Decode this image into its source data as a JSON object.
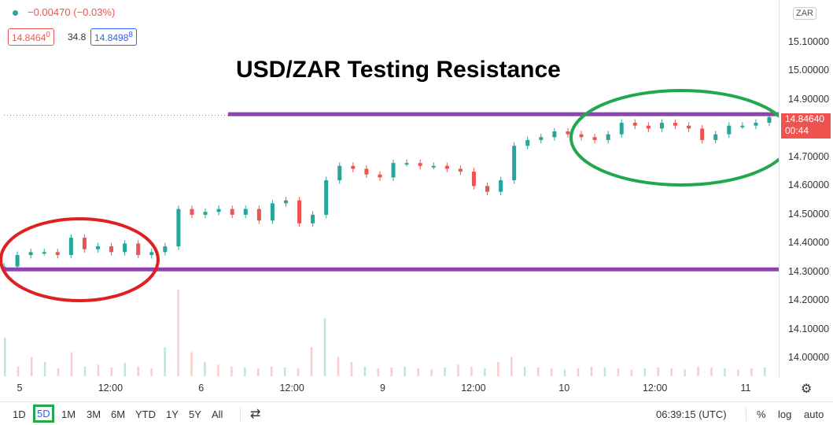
{
  "legend": {
    "change": "−0.00470 (−0.03%)",
    "bid": "14.8464",
    "bid_sup": "0",
    "spread": "34.8",
    "ask": "14.8498",
    "ask_sup": "8"
  },
  "title": "USD/ZAR Testing Resistance",
  "currency": "ZAR",
  "price_tag": {
    "price": "14.84640",
    "countdown": "00:44"
  },
  "colors": {
    "up": "#26a69a",
    "down": "#ef5350",
    "resistance_line": "#8e44ad",
    "support_line": "#8e44ad",
    "start_ellipse": "#e02020",
    "end_ellipse": "#21a84a",
    "accent": "#2962ff"
  },
  "chart_data": {
    "type": "line",
    "y_axis_labels": [
      "15.10000",
      "15.00000",
      "14.90000",
      "14.80000",
      "14.70000",
      "14.60000",
      "14.50000",
      "14.40000",
      "14.30000",
      "14.20000",
      "14.10000",
      "14.00000"
    ],
    "ylim": [
      13.96,
      15.22
    ],
    "x_ticks": [
      "5",
      "12:00",
      "6",
      "12:00",
      "9",
      "12:00",
      "10",
      "12:00",
      "11"
    ],
    "series": [
      {
        "values": [
          14.32,
          14.36,
          14.37,
          14.37,
          14.36,
          14.42,
          14.38,
          14.39,
          14.37,
          14.4,
          14.36,
          14.37,
          14.39,
          14.52,
          14.5,
          14.51,
          14.52,
          14.5,
          14.52,
          14.48,
          14.54,
          14.55,
          14.47,
          14.5,
          14.62,
          14.67,
          14.66,
          14.64,
          14.63,
          14.68,
          14.68,
          14.67,
          14.67,
          14.66,
          14.65,
          14.6,
          14.58,
          14.62,
          14.74,
          14.76,
          14.77,
          14.79,
          14.78,
          14.77,
          14.76,
          14.78,
          14.82,
          14.81,
          14.8,
          14.82,
          14.81,
          14.8,
          14.76,
          14.78,
          14.81,
          14.81,
          14.82,
          14.84
        ]
      }
    ],
    "volume_values": [
      40,
      10,
      20,
      15,
      8,
      25,
      10,
      12,
      9,
      14,
      10,
      8,
      30,
      90,
      25,
      15,
      12,
      10,
      9,
      8,
      10,
      9,
      8,
      30,
      60,
      20,
      15,
      10,
      8,
      9,
      10,
      8,
      7,
      9,
      12,
      10,
      8,
      15,
      20,
      10,
      9,
      8,
      7,
      8,
      10,
      9,
      8,
      7,
      8,
      9,
      8,
      7,
      10,
      9,
      8,
      7,
      8,
      9
    ],
    "annotations": [
      {
        "type": "horizontal_line",
        "label": "resistance",
        "value": 14.85
      },
      {
        "type": "horizontal_line",
        "label": "support",
        "value": 14.31
      }
    ]
  },
  "toolbar": {
    "ranges": [
      "1D",
      "5D",
      "1M",
      "3M",
      "6M",
      "YTD",
      "1Y",
      "5Y",
      "All"
    ],
    "active_range": "5D",
    "time": "06:39:15 (UTC)",
    "percent": "%",
    "log": "log",
    "auto": "auto"
  }
}
